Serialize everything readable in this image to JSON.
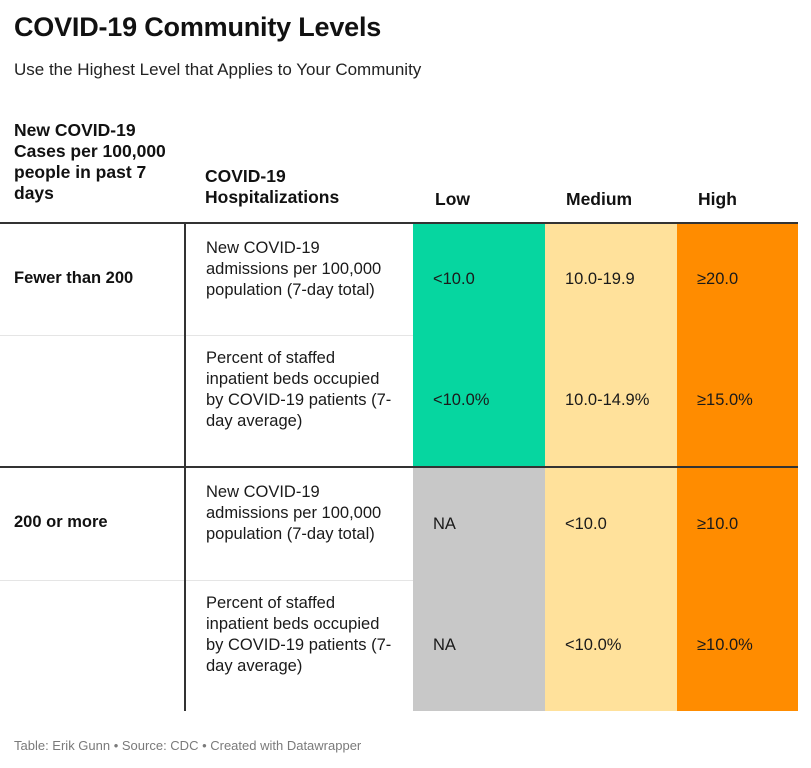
{
  "title": "COVID-19 Community Levels",
  "subtitle": "Use the Highest Level that Applies to Your Community",
  "footer": "Table: Erik Gunn • Source: CDC • Created with Datawrapper",
  "colors": {
    "low": "#06d6a0",
    "medium": "#ffe19b",
    "high": "#ff8c00",
    "na": "#c8c8c8"
  },
  "chart_data": {
    "type": "table",
    "columns": [
      "New COVID-19 Cases per 100,000 people in past 7 days",
      "COVID-19 Hospitalizations",
      "Low",
      "Medium",
      "High"
    ],
    "rows": [
      {
        "cases": "Fewer than 200",
        "metric": "New COVID-19 admissions per 100,000 population (7-day total)",
        "low": "<10.0",
        "medium": "10.0-19.9",
        "high": "≥20.0",
        "low_color": "#06d6a0"
      },
      {
        "cases": "",
        "metric": "Percent of staffed inpatient beds occupied by COVID-19 patients (7-day average)",
        "low": "<10.0%",
        "medium": "10.0-14.9%",
        "high": "≥15.0%",
        "low_color": "#06d6a0"
      },
      {
        "cases": "200 or more",
        "metric": "New COVID-19 admissions per 100,000 population (7-day total)",
        "low": "NA",
        "medium": "<10.0",
        "high": "≥10.0",
        "low_color": "#c8c8c8"
      },
      {
        "cases": "",
        "metric": "Percent of staffed inpatient beds occupied by COVID-19 patients (7-day average)",
        "low": "NA",
        "medium": "<10.0%",
        "high": "≥10.0%",
        "low_color": "#c8c8c8"
      }
    ]
  }
}
